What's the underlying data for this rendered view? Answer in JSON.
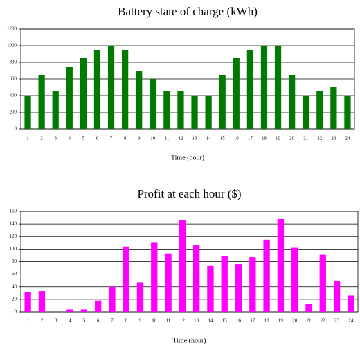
{
  "chart_data": [
    {
      "type": "bar",
      "title": "Battery state of charge (kWh)",
      "xlabel": "Time (hour)",
      "categories": [
        "1",
        "2",
        "3",
        "4",
        "5",
        "6",
        "7",
        "8",
        "9",
        "10",
        "11",
        "12",
        "13",
        "14",
        "15",
        "16",
        "17",
        "18",
        "19",
        "20",
        "21",
        "22",
        "23",
        "24"
      ],
      "values": [
        400,
        650,
        450,
        750,
        850,
        950,
        1000,
        950,
        700,
        600,
        450,
        450,
        400,
        400,
        650,
        850,
        950,
        1000,
        1000,
        650,
        400,
        450,
        500,
        400
      ],
      "color": "#007a00",
      "ylim": [
        0,
        1200
      ],
      "yticks": [
        0,
        200,
        400,
        600,
        800,
        1000,
        1200
      ],
      "grid": true
    },
    {
      "type": "bar",
      "title": "Profit at each hour ($)",
      "xlabel": "Time (hour)",
      "categories": [
        "1",
        "2",
        "3",
        "4",
        "5",
        "6",
        "7",
        "8",
        "9",
        "10",
        "11",
        "12",
        "13",
        "14",
        "15",
        "16",
        "17",
        "18",
        "19",
        "20",
        "21",
        "22",
        "23",
        "24"
      ],
      "values": [
        31,
        33,
        0,
        4,
        4,
        18,
        40,
        104,
        47,
        111,
        93,
        146,
        106,
        73,
        89,
        76,
        87,
        115,
        148,
        102,
        13,
        91,
        49,
        26
      ],
      "color": "#ff00ff",
      "ylim": [
        0,
        160
      ],
      "yticks": [
        0,
        20,
        40,
        60,
        80,
        100,
        120,
        140,
        160
      ],
      "grid": true
    }
  ]
}
